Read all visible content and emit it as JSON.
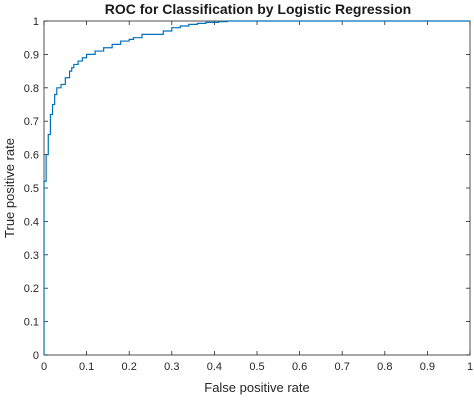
{
  "chart_data": {
    "type": "line",
    "title": "ROC for Classification by Logistic Regression",
    "xlabel": "False positive rate",
    "ylabel": "True positive rate",
    "xlim": [
      0,
      1
    ],
    "ylim": [
      0,
      1
    ],
    "xticks": [
      "0",
      "0.1",
      "0.2",
      "0.3",
      "0.4",
      "0.5",
      "0.6",
      "0.7",
      "0.8",
      "0.9",
      "1"
    ],
    "yticks": [
      "0",
      "0.1",
      "0.2",
      "0.3",
      "0.4",
      "0.5",
      "0.6",
      "0.7",
      "0.8",
      "0.9",
      "1"
    ],
    "grid": false,
    "series": [
      {
        "color": "#0072bd",
        "x": [
          0,
          0,
          0.005,
          0.005,
          0.01,
          0.01,
          0.015,
          0.015,
          0.02,
          0.02,
          0.025,
          0.025,
          0.03,
          0.03,
          0.04,
          0.04,
          0.05,
          0.05,
          0.06,
          0.06,
          0.065,
          0.065,
          0.07,
          0.07,
          0.08,
          0.08,
          0.09,
          0.09,
          0.1,
          0.1,
          0.12,
          0.12,
          0.14,
          0.14,
          0.16,
          0.16,
          0.18,
          0.18,
          0.2,
          0.2,
          0.21,
          0.21,
          0.23,
          0.23,
          0.28,
          0.28,
          0.3,
          0.3,
          0.32,
          0.32,
          0.34,
          0.34,
          0.36,
          0.36,
          0.38,
          0.38,
          0.41,
          0.41,
          0.43,
          0.43,
          1
        ],
        "y": [
          0,
          0.52,
          0.52,
          0.6,
          0.6,
          0.66,
          0.66,
          0.72,
          0.72,
          0.75,
          0.75,
          0.78,
          0.78,
          0.8,
          0.8,
          0.81,
          0.81,
          0.83,
          0.83,
          0.85,
          0.85,
          0.86,
          0.86,
          0.87,
          0.87,
          0.88,
          0.88,
          0.89,
          0.89,
          0.9,
          0.9,
          0.91,
          0.91,
          0.92,
          0.92,
          0.93,
          0.93,
          0.94,
          0.94,
          0.945,
          0.945,
          0.95,
          0.95,
          0.96,
          0.96,
          0.97,
          0.97,
          0.98,
          0.98,
          0.985,
          0.985,
          0.99,
          0.99,
          0.993,
          0.993,
          0.996,
          0.996,
          0.998,
          0.998,
          1,
          1
        ]
      }
    ]
  }
}
